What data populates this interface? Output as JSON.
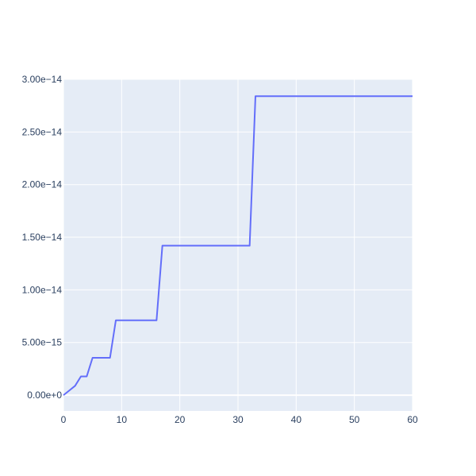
{
  "colors": {
    "plot_bg": "#E5ECF6",
    "grid": "#ffffff",
    "line": "#636EFA",
    "tick_text": "#2a3f5f"
  },
  "chart_data": {
    "type": "line",
    "title": "",
    "xlabel": "",
    "ylabel": "",
    "grid": true,
    "xlim": [
      0,
      60
    ],
    "ylim": [
      -1.5e-15,
      3e-14
    ],
    "x_ticks": [
      0,
      10,
      20,
      30,
      40,
      50,
      60
    ],
    "x_tick_labels": [
      "0",
      "10",
      "20",
      "30",
      "40",
      "50",
      "60"
    ],
    "y_ticks": [
      0,
      5e-15,
      1e-14,
      1.5e-14,
      2e-14,
      2.5e-14,
      3e-14
    ],
    "y_tick_labels": [
      "0.00e+0",
      "5.00e−15",
      "1.00e−14",
      "1.50e−14",
      "2.00e−14",
      "2.50e−14",
      "3.00e−14"
    ],
    "series": [
      {
        "x": [
          0,
          1,
          2,
          3,
          4,
          5,
          6,
          7,
          8,
          9,
          10,
          11,
          12,
          13,
          14,
          15,
          16,
          17,
          18,
          19,
          20,
          21,
          22,
          23,
          24,
          25,
          26,
          27,
          28,
          29,
          30,
          31,
          32,
          33,
          34,
          35,
          36,
          37,
          38,
          39,
          40,
          41,
          42,
          43,
          44,
          45,
          46,
          47,
          48,
          49,
          50,
          51,
          52,
          53,
          54,
          55,
          56,
          57,
          58,
          59,
          60
        ],
        "y": [
          0,
          4.4e-16,
          8.9e-16,
          1.78e-15,
          1.78e-15,
          3.55e-15,
          3.55e-15,
          3.55e-15,
          3.55e-15,
          7.11e-15,
          7.11e-15,
          7.11e-15,
          7.11e-15,
          7.11e-15,
          7.11e-15,
          7.11e-15,
          7.11e-15,
          1.42e-14,
          1.42e-14,
          1.42e-14,
          1.42e-14,
          1.42e-14,
          1.42e-14,
          1.42e-14,
          1.42e-14,
          1.42e-14,
          1.42e-14,
          1.42e-14,
          1.42e-14,
          1.42e-14,
          1.42e-14,
          1.42e-14,
          1.42e-14,
          2.84e-14,
          2.84e-14,
          2.84e-14,
          2.84e-14,
          2.84e-14,
          2.84e-14,
          2.84e-14,
          2.84e-14,
          2.84e-14,
          2.84e-14,
          2.84e-14,
          2.84e-14,
          2.84e-14,
          2.84e-14,
          2.84e-14,
          2.84e-14,
          2.84e-14,
          2.84e-14,
          2.84e-14,
          2.84e-14,
          2.84e-14,
          2.84e-14,
          2.84e-14,
          2.84e-14,
          2.84e-14,
          2.84e-14,
          2.84e-14,
          2.84e-14
        ]
      }
    ]
  }
}
